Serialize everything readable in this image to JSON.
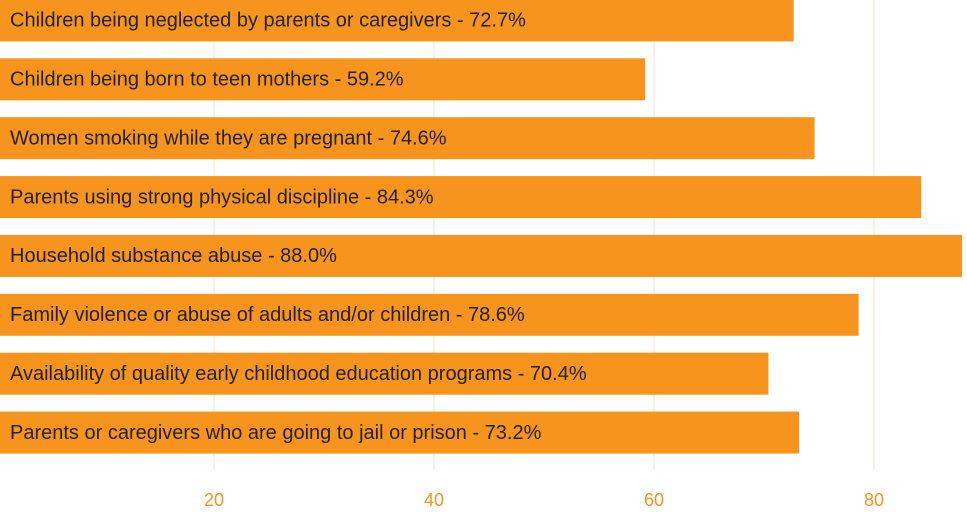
{
  "chart_data": {
    "type": "bar",
    "orientation": "horizontal",
    "categories": [
      "Children being neglected by parents or caregivers - 72.7%",
      "Children being born to teen mothers - 59.2%",
      "Women smoking while they are pregnant - 74.6%",
      "Parents using strong physical discipline - 84.3%",
      "Household substance abuse - 88.0%",
      "Family violence or abuse of adults and/or children - 78.6%",
      "Availability of quality early childhood education programs - 70.4%",
      "Parents or caregivers who are going to jail or prison - 73.2%"
    ],
    "values": [
      72.7,
      59.2,
      74.6,
      84.3,
      88.0,
      78.6,
      70.4,
      73.2
    ],
    "color": "#f7941d",
    "xlim": [
      0,
      88
    ],
    "xticks": [
      0,
      20,
      40,
      60,
      80
    ],
    "grid": true
  }
}
